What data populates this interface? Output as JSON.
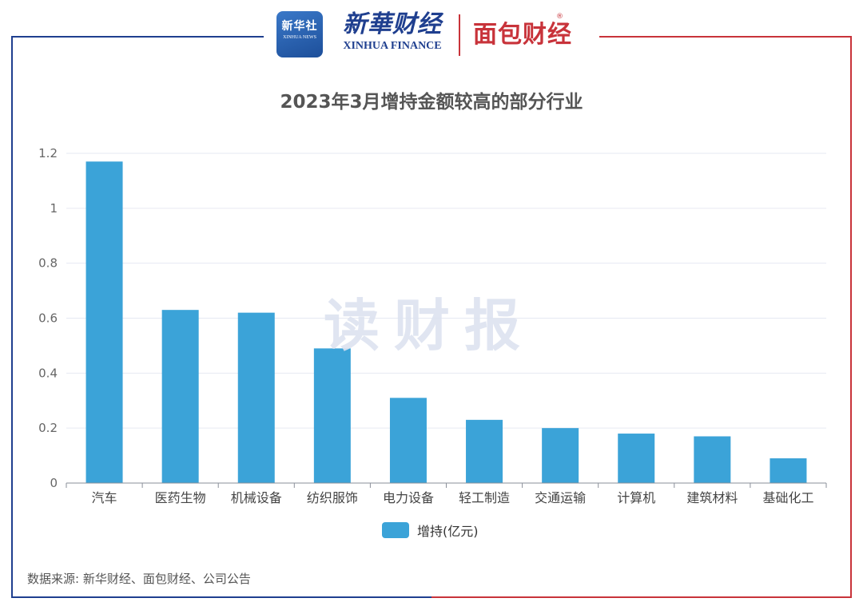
{
  "brand": {
    "badge_main": "新华社",
    "badge_sub": "XINHUA NEWS",
    "xinhua_cn": "新華财经",
    "xinhua_en": "XINHUA FINANCE",
    "mianbao": "面包财经",
    "registered": "®"
  },
  "watermark": "读财报",
  "source_note": "数据来源: 新华财经、面包财经、公司公告",
  "colors": {
    "bar": "#3ba3d8",
    "frame_left": "#1f3f8f",
    "frame_right": "#c8333a",
    "grid": "#e6e9f2",
    "axis": "#8a8f99"
  },
  "chart_data": {
    "type": "bar",
    "title": "2023年3月增持金额较高的部分行业",
    "categories": [
      "汽车",
      "医药生物",
      "机械设备",
      "纺织服饰",
      "电力设备",
      "轻工制造",
      "交通运输",
      "计算机",
      "建筑材料",
      "基础化工"
    ],
    "series": [
      {
        "name": "增持(亿元)",
        "values": [
          1.17,
          0.63,
          0.62,
          0.49,
          0.31,
          0.23,
          0.2,
          0.18,
          0.17,
          0.09
        ]
      }
    ],
    "ylim": [
      0,
      1.2
    ],
    "yticks": [
      "0",
      "0.2",
      "0.4",
      "0.6",
      "0.8",
      "1",
      "1.2"
    ],
    "grid": true,
    "legend": "bottom-center"
  }
}
